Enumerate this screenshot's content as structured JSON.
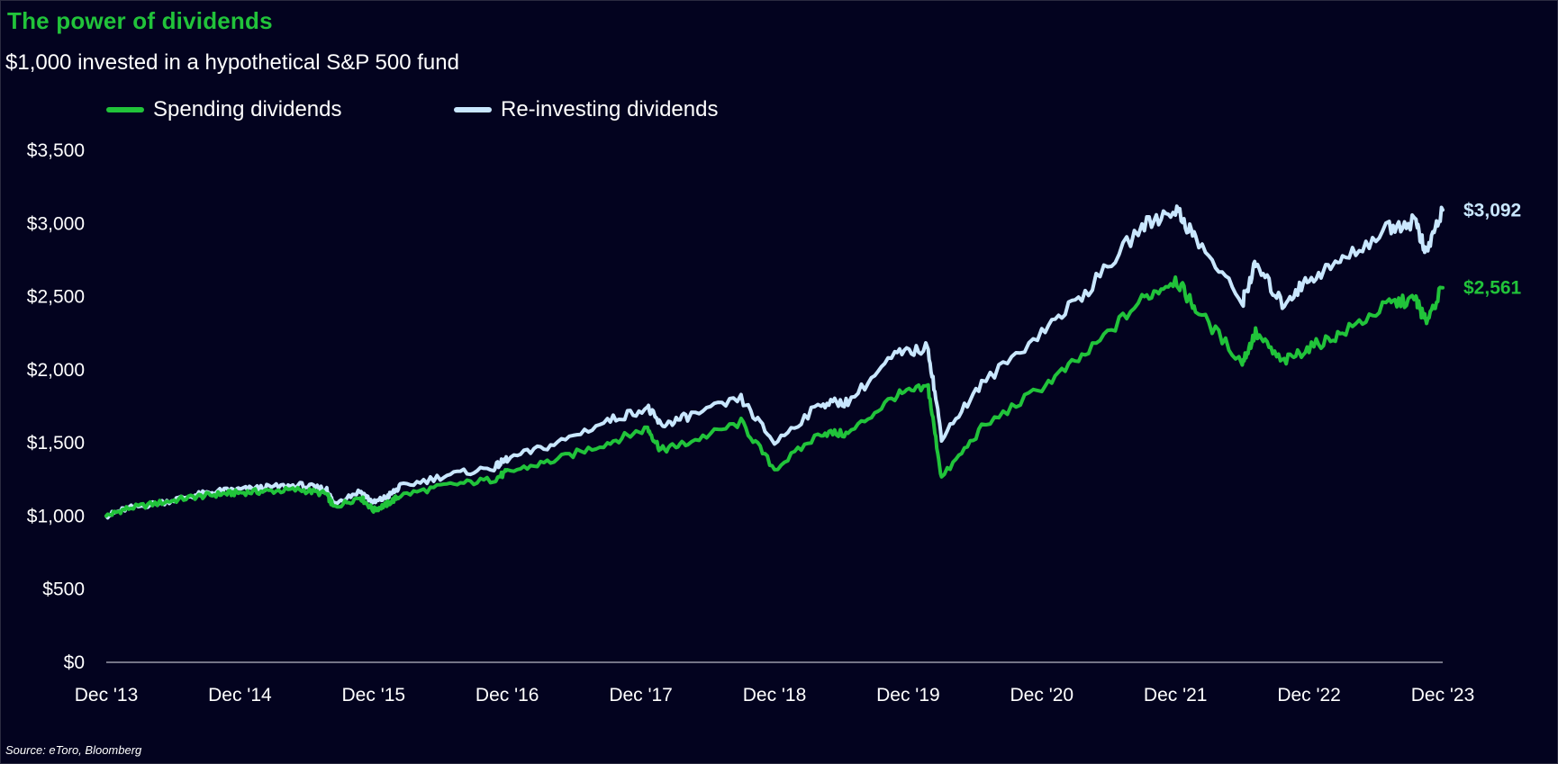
{
  "title": "The power of dividends",
  "subtitle": "$1,000 invested in a hypothetical S&P 500 fund",
  "source": "Source: eToro, Bloomberg",
  "colors": {
    "background": "#03031f",
    "title": "#21c33a",
    "spending": "#21c33a",
    "reinvesting": "#c9e7ff",
    "axis": "#e6e6ee"
  },
  "chart_data": {
    "type": "line",
    "title": "The power of dividends",
    "subtitle": "$1,000 invested in a hypothetical S&P 500 fund",
    "xlabel": "",
    "ylabel": "",
    "xlim": [
      2013.95,
      2023.95
    ],
    "ylim": [
      0,
      3500
    ],
    "y_ticks": [
      0,
      500,
      1000,
      1500,
      2000,
      2500,
      3000,
      3500
    ],
    "y_tick_labels": [
      "$0",
      "$500",
      "$1,000",
      "$1,500",
      "$2,000",
      "$2,500",
      "$3,000",
      "$3,500"
    ],
    "x_ticks": [
      2013.95,
      2014.95,
      2015.95,
      2016.95,
      2017.95,
      2018.95,
      2019.95,
      2020.95,
      2021.95,
      2022.95,
      2023.95
    ],
    "x_tick_labels": [
      "Dec '13",
      "Dec '14",
      "Dec '15",
      "Dec '16",
      "Dec '17",
      "Dec '18",
      "Dec '19",
      "Dec '20",
      "Dec '21",
      "Dec '22",
      "Dec '23"
    ],
    "grid": false,
    "legend_position": "top-left",
    "x": [
      2013.95,
      2014.1,
      2014.35,
      2014.6,
      2014.8,
      2014.95,
      2015.15,
      2015.4,
      2015.6,
      2015.65,
      2015.85,
      2015.95,
      2016.05,
      2016.15,
      2016.5,
      2016.85,
      2016.95,
      2017.3,
      2017.7,
      2018.0,
      2018.1,
      2018.3,
      2018.7,
      2018.95,
      2019.3,
      2019.5,
      2019.85,
      2020.1,
      2020.2,
      2020.5,
      2020.95,
      2021.3,
      2021.7,
      2021.95,
      2022.1,
      2022.45,
      2022.55,
      2022.75,
      2022.95,
      2023.2,
      2023.55,
      2023.75,
      2023.82,
      2023.95
    ],
    "series": [
      {
        "name": "Spending dividends",
        "color": "#21c33a",
        "end_label": "$2,561",
        "values": [
          1000,
          1050,
          1090,
          1130,
          1150,
          1160,
          1170,
          1180,
          1150,
          1060,
          1130,
          1040,
          1080,
          1140,
          1210,
          1250,
          1300,
          1380,
          1500,
          1600,
          1450,
          1500,
          1640,
          1320,
          1570,
          1560,
          1820,
          1880,
          1260,
          1600,
          1880,
          2120,
          2480,
          2620,
          2420,
          2050,
          2250,
          2050,
          2150,
          2250,
          2450,
          2480,
          2330,
          2561
        ]
      },
      {
        "name": "Re-investing dividends",
        "color": "#c9e7ff",
        "end_label": "$3,092",
        "values": [
          1000,
          1050,
          1090,
          1140,
          1170,
          1180,
          1195,
          1210,
          1180,
          1090,
          1170,
          1090,
          1130,
          1200,
          1280,
          1330,
          1390,
          1490,
          1650,
          1740,
          1620,
          1680,
          1800,
          1500,
          1770,
          1780,
          2100,
          2150,
          1540,
          1900,
          2260,
          2550,
          2980,
          3100,
          2900,
          2460,
          2720,
          2450,
          2620,
          2750,
          2970,
          3020,
          2790,
          3092
        ]
      }
    ]
  }
}
